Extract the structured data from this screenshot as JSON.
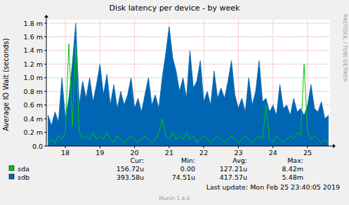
{
  "chart_data": {
    "type": "line",
    "title": "Disk latency per device - by week",
    "y_label": "Average IO Wait (seconds)",
    "watermark": "RRDTOOL / TOBI OETIKER",
    "stats_headers": [
      "Cur:",
      "Min:",
      "Avg:",
      "Max:"
    ],
    "last_update": "Last update:  Mon Feb 25 23:40:05 2019",
    "footer": "Munin 1.4.6",
    "grid": true,
    "legend": "bottom-left",
    "xlim": [
      17.45,
      25.65
    ],
    "xticks": [
      18,
      19,
      20,
      21,
      22,
      23,
      24,
      25
    ],
    "ylim": [
      0,
      0.0018
    ],
    "yticks": [
      {
        "value": 0,
        "label": "0.0"
      },
      {
        "value": 0.0002,
        "label": "0.2 m"
      },
      {
        "value": 0.0004,
        "label": "0.4 m"
      },
      {
        "value": 0.0006,
        "label": "0.6 m"
      },
      {
        "value": 0.0008,
        "label": "0.8 m"
      },
      {
        "value": 0.001,
        "label": "1.0 m"
      },
      {
        "value": 0.0012,
        "label": "1.2 m"
      },
      {
        "value": 0.0014,
        "label": "1.4 m"
      },
      {
        "value": 0.0016,
        "label": "1.6 m"
      },
      {
        "value": 0.0018,
        "label": "1.8 m"
      }
    ],
    "x": [
      17.5,
      17.6,
      17.7,
      17.8,
      17.9,
      18.0,
      18.1,
      18.2,
      18.3,
      18.4,
      18.5,
      18.6,
      18.7,
      18.8,
      18.9,
      19.0,
      19.1,
      19.2,
      19.3,
      19.4,
      19.5,
      19.6,
      19.7,
      19.8,
      19.9,
      20.0,
      20.1,
      20.2,
      20.3,
      20.4,
      20.5,
      20.6,
      20.7,
      20.8,
      20.9,
      21.0,
      21.1,
      21.2,
      21.3,
      21.4,
      21.5,
      21.6,
      21.7,
      21.8,
      21.9,
      22.0,
      22.1,
      22.2,
      22.3,
      22.4,
      22.5,
      22.6,
      22.7,
      22.8,
      22.9,
      23.0,
      23.1,
      23.2,
      23.3,
      23.4,
      23.5,
      23.6,
      23.7,
      23.8,
      23.9,
      24.0,
      24.1,
      24.2,
      24.3,
      24.4,
      24.5,
      24.6,
      24.7,
      24.8,
      24.9,
      25.0,
      25.1,
      25.2,
      25.3,
      25.4,
      25.5,
      25.6
    ],
    "series": [
      {
        "name": "sda",
        "color": "#00cc00",
        "type": "line",
        "stats": [
          "156.72u",
          "0.00",
          "127.21u",
          "8.42m"
        ],
        "values": [
          5e-05,
          0.0001,
          5e-05,
          0.00015,
          0.0001,
          0.0002,
          0.0015,
          0.0003,
          0.0015,
          0.0002,
          0.0001,
          0.00015,
          0.0001,
          0.0002,
          0.0001,
          0.00015,
          0.0001,
          0.0002,
          0.0001,
          5e-05,
          0.00015,
          0.0001,
          5e-05,
          0.0001,
          0.00015,
          0.0001,
          5e-05,
          0.0001,
          0.00015,
          0.0001,
          5e-05,
          0.0001,
          0.0002,
          0.0004,
          0.00015,
          0.0001,
          0.0002,
          0.0001,
          0.00015,
          0.0001,
          0.0002,
          0.0001,
          0.00015,
          5e-05,
          0.0001,
          0.00015,
          0.0001,
          5e-05,
          0.0001,
          0.00015,
          0.0001,
          5e-05,
          0.0001,
          0.00015,
          0.0001,
          5e-05,
          0.0001,
          0.00015,
          0.0001,
          5e-05,
          0.0001,
          0.00015,
          0.0001,
          0.0006,
          0.0001,
          5e-05,
          0.00015,
          0.0001,
          5e-05,
          0.0001,
          0.00015,
          0.0001,
          0.0002,
          0.00015,
          0.0012,
          0.0002,
          0.0001,
          0.00015,
          0.0001,
          5e-05,
          0.0001,
          5e-05
        ]
      },
      {
        "name": "sdb",
        "color": "#0066b3",
        "type": "area",
        "stats": [
          "393.58u",
          "74.51u",
          "417.57u",
          "5.48m"
        ],
        "values": [
          0.00045,
          0.0003,
          0.0005,
          0.00035,
          0.001,
          0.0004,
          0.0007,
          0.0012,
          0.0018,
          0.0006,
          0.00095,
          0.0007,
          0.001,
          0.00065,
          0.0009,
          0.0012,
          0.00075,
          0.00105,
          0.0006,
          0.0009,
          0.00055,
          0.0008,
          0.0006,
          0.00075,
          0.001,
          0.00055,
          0.0007,
          0.0005,
          0.00075,
          0.001,
          0.0006,
          0.00075,
          0.00055,
          0.001,
          0.00135,
          0.00175,
          0.0013,
          0.0011,
          0.0008,
          0.001,
          0.0007,
          0.0014,
          0.00085,
          0.00095,
          0.00125,
          0.00065,
          0.0008,
          0.0006,
          0.0011,
          0.0007,
          0.00085,
          0.0007,
          0.00095,
          0.00125,
          0.00075,
          0.00055,
          0.0007,
          0.0005,
          0.001,
          0.0006,
          0.0008,
          0.00125,
          0.00065,
          0.0007,
          0.0005,
          0.0006,
          0.00045,
          0.0009,
          0.00055,
          0.0006,
          0.00045,
          0.0007,
          0.0005,
          0.00055,
          0.00045,
          0.0006,
          0.0009,
          0.00055,
          0.0005,
          0.00065,
          0.0004,
          0.00045
        ]
      }
    ]
  }
}
